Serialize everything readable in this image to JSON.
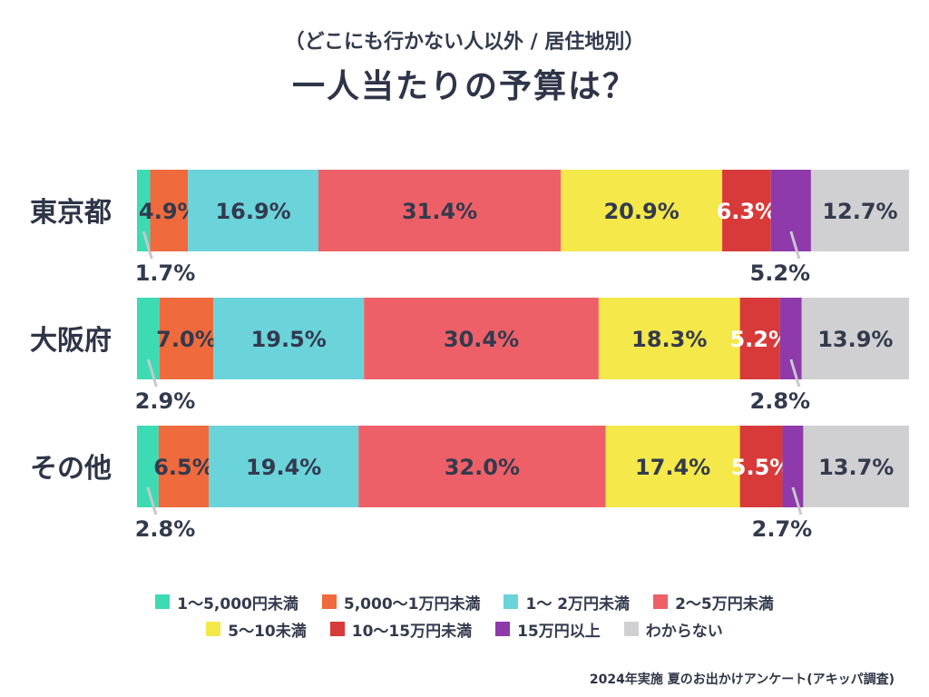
{
  "header": {
    "subtitle": "（どこにも行かない人以外 / 居住地別）",
    "title": "一人当たりの予算は？"
  },
  "chart_data": {
    "type": "bar",
    "orientation": "horizontal",
    "stacked": "100%",
    "categories": [
      "東京都",
      "大阪府",
      "その他"
    ],
    "series": [
      {
        "name": "1〜5,000円未満",
        "color": "#3ddbb4",
        "values": [
          1.7,
          2.9,
          2.8
        ],
        "labels": [
          "1.7%",
          "2.9%",
          "2.8%"
        ]
      },
      {
        "name": "5,000〜1万円未満",
        "color": "#ef6a3d",
        "values": [
          4.9,
          7.0,
          6.5
        ],
        "labels": [
          "4.9%",
          "7.0%",
          "6.5%"
        ]
      },
      {
        "name": "1〜 2万円未満",
        "color": "#6bd3da",
        "values": [
          16.9,
          19.5,
          19.4
        ],
        "labels": [
          "16.9%",
          "19.5%",
          "19.4%"
        ]
      },
      {
        "name": "2〜5万円未満",
        "color": "#ee6068",
        "values": [
          31.4,
          30.4,
          32.0
        ],
        "labels": [
          "31.4%",
          "30.4%",
          "32.0%"
        ]
      },
      {
        "name": "5〜10未満",
        "color": "#f4e84a",
        "values": [
          20.9,
          18.3,
          17.4
        ],
        "labels": [
          "20.9%",
          "18.3%",
          "17.4%"
        ]
      },
      {
        "name": "10〜15万円未満",
        "color": "#d83a3a",
        "values": [
          6.3,
          5.2,
          5.5
        ],
        "labels": [
          "6.3%",
          "5.2%",
          "5.5%"
        ]
      },
      {
        "name": "15万円以上",
        "color": "#8e3aab",
        "values": [
          5.2,
          2.8,
          2.7
        ],
        "labels": [
          "5.2%",
          "2.8%",
          "2.7%"
        ]
      },
      {
        "name": "わからない",
        "color": "#d0d0d2",
        "values": [
          12.7,
          13.9,
          13.7
        ],
        "labels": [
          "12.7%",
          "13.9%",
          "13.7%"
        ]
      }
    ],
    "legend_rows": [
      [
        "1〜5,000円未満",
        "5,000〜1万円未満",
        "1〜 2万円未満",
        "2〜5万円未満"
      ],
      [
        "5〜10未満",
        "10〜15万円未満",
        "15万円以上",
        "わからない"
      ]
    ],
    "xlim": [
      0,
      100
    ]
  },
  "footer": {
    "source": "2024年実施 夏のお出かけアンケート(アキッパ調査)"
  }
}
